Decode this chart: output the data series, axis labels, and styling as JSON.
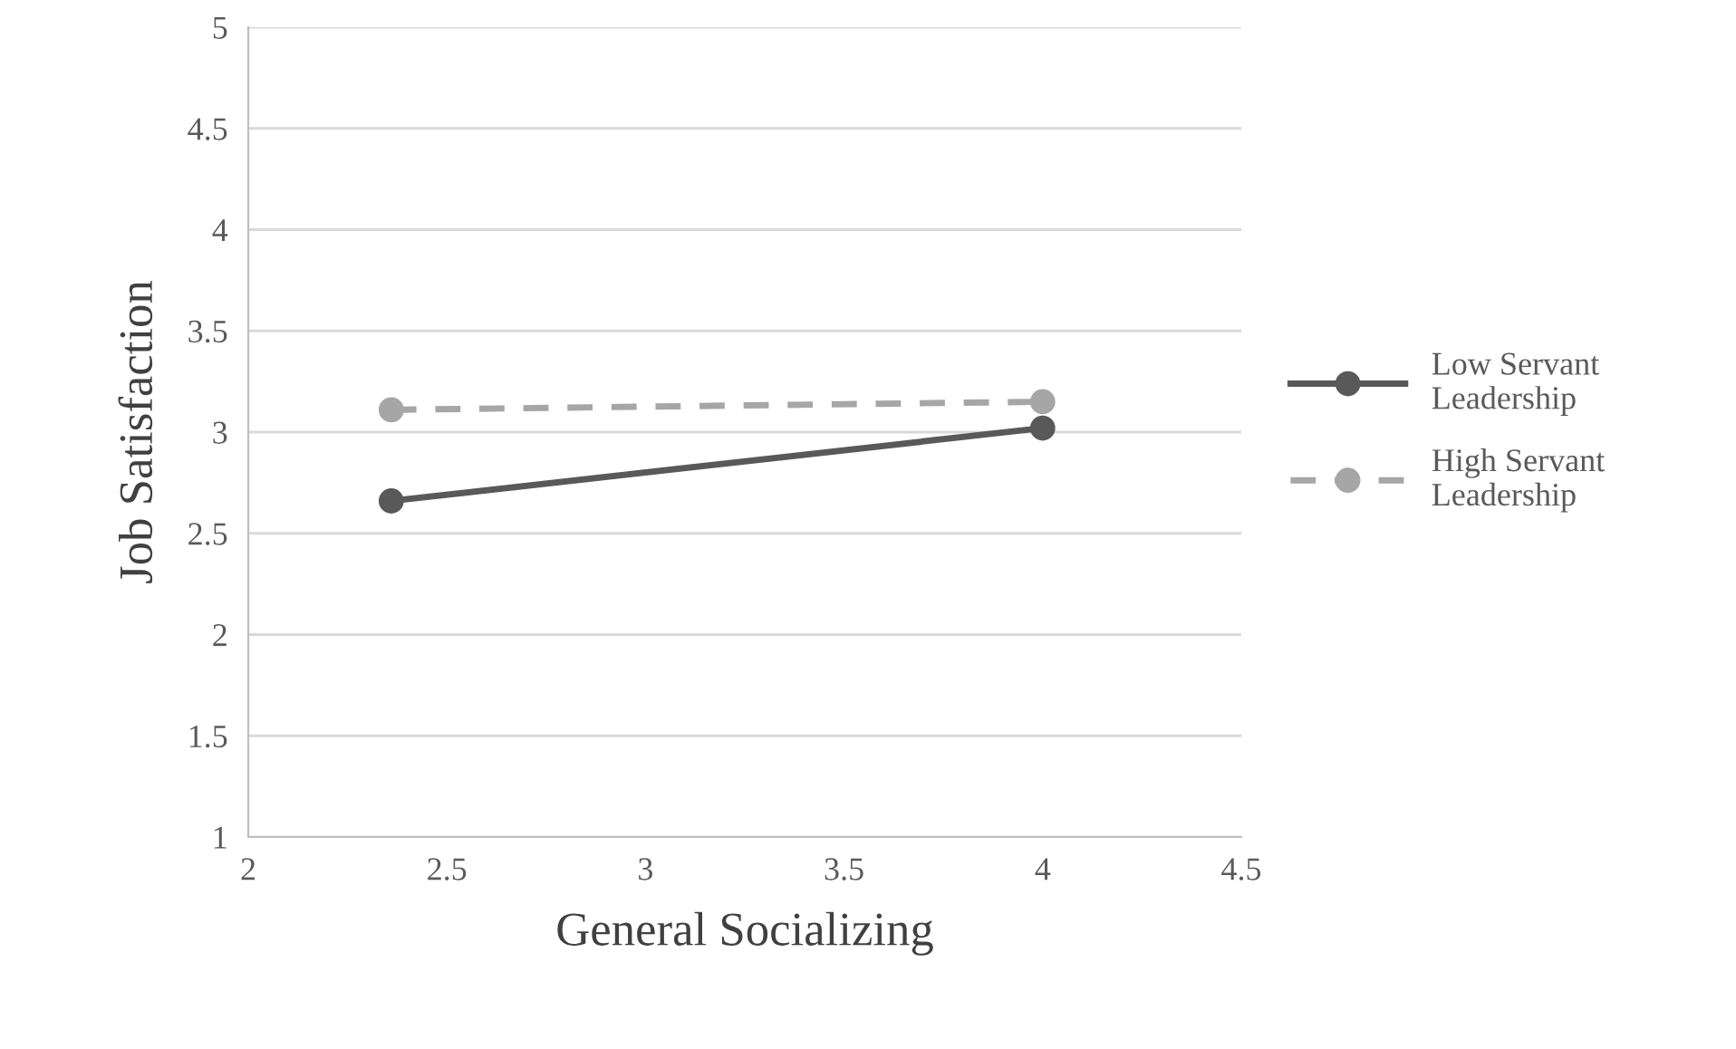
{
  "chart_data": {
    "type": "line",
    "xlabel": "General Socializing",
    "ylabel": "Job Satisfaction",
    "xlim": [
      2,
      4.5
    ],
    "xticks": [
      2,
      2.5,
      3,
      3.5,
      4,
      4.5
    ],
    "ylim": [
      1,
      5
    ],
    "yticks": [
      1,
      1.5,
      2,
      2.5,
      3,
      3.5,
      4,
      4.5,
      5
    ],
    "grid": "y",
    "legend": "right",
    "marker": "circle",
    "x": [
      2.36,
      4.0
    ],
    "series": [
      {
        "name": "Low Servant Leadership",
        "color": "#595959",
        "values": [
          2.66,
          3.02
        ],
        "line_style": "solid"
      },
      {
        "name": "High Servant Leadership",
        "color": "#a6a6a6",
        "values": [
          3.11,
          3.15
        ],
        "line_style": "dashed"
      }
    ]
  }
}
